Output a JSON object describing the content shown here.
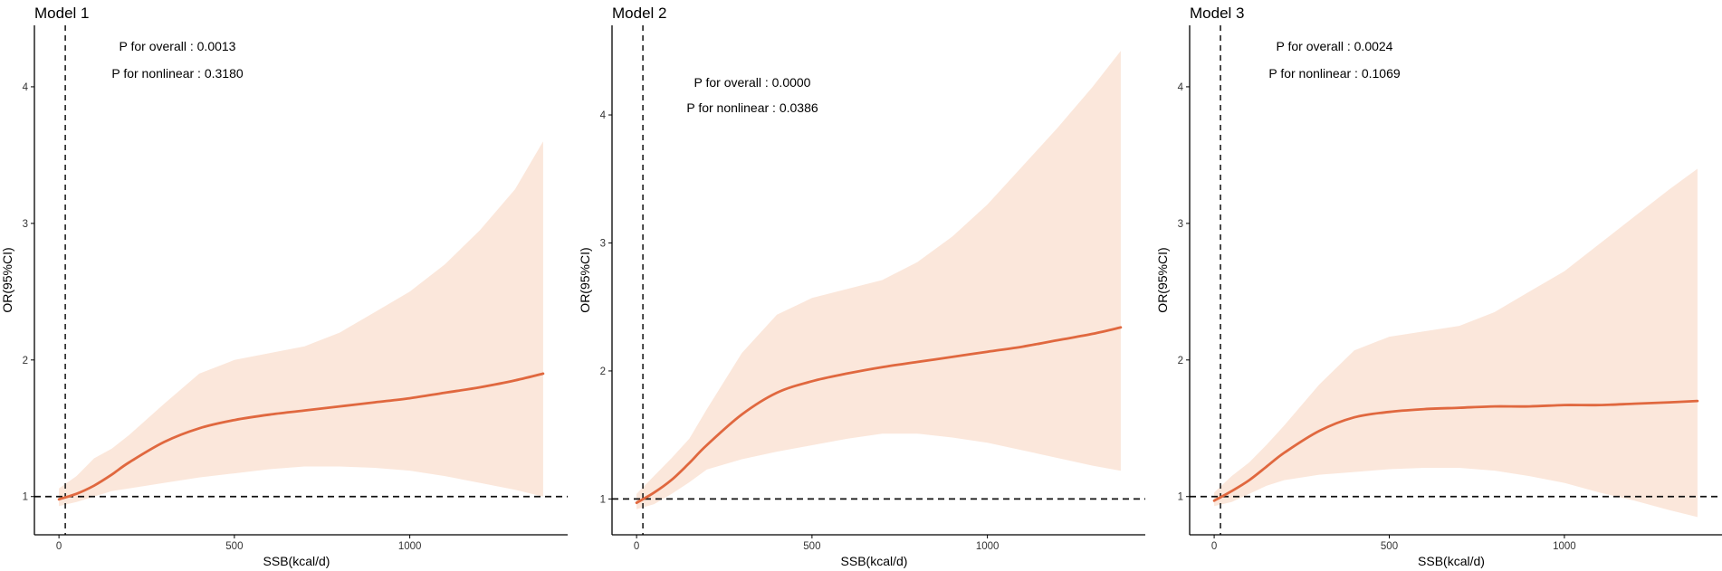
{
  "chart_data": [
    {
      "type": "line",
      "title": "Model 1",
      "xlabel": "SSB(kcal/d)",
      "ylabel": "OR(95%CI)",
      "xlim": [
        -70,
        1450
      ],
      "ylim": [
        0.72,
        4.45
      ],
      "xticks": [
        0,
        500,
        1000
      ],
      "yticks": [
        1,
        2,
        3,
        4
      ],
      "reference_x": 18,
      "reference_y": 1,
      "annotations": [
        "P for overall : 0.0013",
        "P for nonlinear : 0.3180"
      ],
      "series": [
        {
          "x": [
            0,
            50,
            100,
            150,
            200,
            300,
            400,
            500,
            600,
            700,
            800,
            900,
            1000,
            1100,
            1200,
            1300,
            1380
          ],
          "y": [
            0.98,
            1.02,
            1.08,
            1.16,
            1.25,
            1.4,
            1.5,
            1.56,
            1.6,
            1.63,
            1.66,
            1.69,
            1.72,
            1.76,
            1.8,
            1.85,
            1.9
          ]
        }
      ],
      "ci": {
        "x": [
          0,
          50,
          100,
          150,
          200,
          300,
          400,
          500,
          600,
          700,
          800,
          900,
          1000,
          1100,
          1200,
          1300,
          1380
        ],
        "lower": [
          0.93,
          0.96,
          1.0,
          1.04,
          1.06,
          1.1,
          1.14,
          1.17,
          1.2,
          1.22,
          1.22,
          1.21,
          1.19,
          1.15,
          1.1,
          1.05,
          1.0
        ],
        "upper": [
          1.06,
          1.15,
          1.28,
          1.35,
          1.45,
          1.68,
          1.9,
          2.0,
          2.05,
          2.1,
          2.2,
          2.35,
          2.5,
          2.7,
          2.95,
          3.25,
          3.6
        ]
      }
    },
    {
      "type": "line",
      "title": "Model 2",
      "xlabel": "SSB(kcal/d)",
      "ylabel": "OR(95%CI)",
      "xlim": [
        -70,
        1450
      ],
      "ylim": [
        0.72,
        4.7
      ],
      "xticks": [
        0,
        500,
        1000
      ],
      "yticks": [
        1,
        2,
        3,
        4
      ],
      "reference_x": 18,
      "reference_y": 1,
      "annotations": [
        "P for overall : 0.0000",
        "P for nonlinear : 0.0386"
      ],
      "series": [
        {
          "x": [
            0,
            50,
            100,
            150,
            200,
            300,
            400,
            500,
            600,
            700,
            800,
            900,
            1000,
            1100,
            1200,
            1300,
            1380
          ],
          "y": [
            0.97,
            1.05,
            1.15,
            1.28,
            1.42,
            1.66,
            1.83,
            1.92,
            1.98,
            2.03,
            2.07,
            2.11,
            2.15,
            2.19,
            2.24,
            2.29,
            2.34
          ]
        }
      ],
      "ci": {
        "x": [
          0,
          50,
          100,
          150,
          200,
          300,
          400,
          500,
          600,
          700,
          800,
          900,
          1000,
          1100,
          1200,
          1300,
          1380
        ],
        "lower": [
          0.92,
          0.96,
          1.04,
          1.13,
          1.23,
          1.31,
          1.37,
          1.42,
          1.47,
          1.51,
          1.51,
          1.48,
          1.44,
          1.38,
          1.32,
          1.26,
          1.22
        ],
        "upper": [
          1.04,
          1.18,
          1.32,
          1.47,
          1.7,
          2.14,
          2.44,
          2.57,
          2.64,
          2.71,
          2.85,
          3.05,
          3.3,
          3.6,
          3.9,
          4.22,
          4.5
        ]
      }
    },
    {
      "type": "line",
      "title": "Model 3",
      "xlabel": "SSB(kcal/d)",
      "ylabel": "OR(95%CI)",
      "xlim": [
        -70,
        1450
      ],
      "ylim": [
        0.72,
        4.45
      ],
      "xticks": [
        0,
        500,
        1000
      ],
      "yticks": [
        1,
        2,
        3,
        4
      ],
      "reference_x": 18,
      "reference_y": 1,
      "annotations": [
        "P for overall : 0.0024",
        "P for nonlinear : 0.1069"
      ],
      "series": [
        {
          "x": [
            0,
            50,
            100,
            150,
            200,
            300,
            400,
            500,
            600,
            700,
            800,
            900,
            1000,
            1100,
            1200,
            1300,
            1380
          ],
          "y": [
            0.97,
            1.04,
            1.12,
            1.22,
            1.32,
            1.48,
            1.58,
            1.62,
            1.64,
            1.65,
            1.66,
            1.66,
            1.67,
            1.67,
            1.68,
            1.69,
            1.7
          ]
        }
      ],
      "ci": {
        "x": [
          0,
          50,
          100,
          150,
          200,
          300,
          400,
          500,
          600,
          700,
          800,
          900,
          1000,
          1100,
          1200,
          1300,
          1380
        ],
        "lower": [
          0.93,
          0.96,
          1.02,
          1.08,
          1.12,
          1.16,
          1.18,
          1.2,
          1.21,
          1.21,
          1.19,
          1.15,
          1.1,
          1.03,
          0.97,
          0.9,
          0.85
        ],
        "upper": [
          1.03,
          1.15,
          1.25,
          1.38,
          1.52,
          1.82,
          2.07,
          2.17,
          2.21,
          2.25,
          2.35,
          2.5,
          2.65,
          2.85,
          3.05,
          3.25,
          3.4
        ]
      }
    }
  ],
  "colors": {
    "line": "#e0683f",
    "band": "#fbe7db",
    "axis": "#000000",
    "reference": "#111111"
  }
}
